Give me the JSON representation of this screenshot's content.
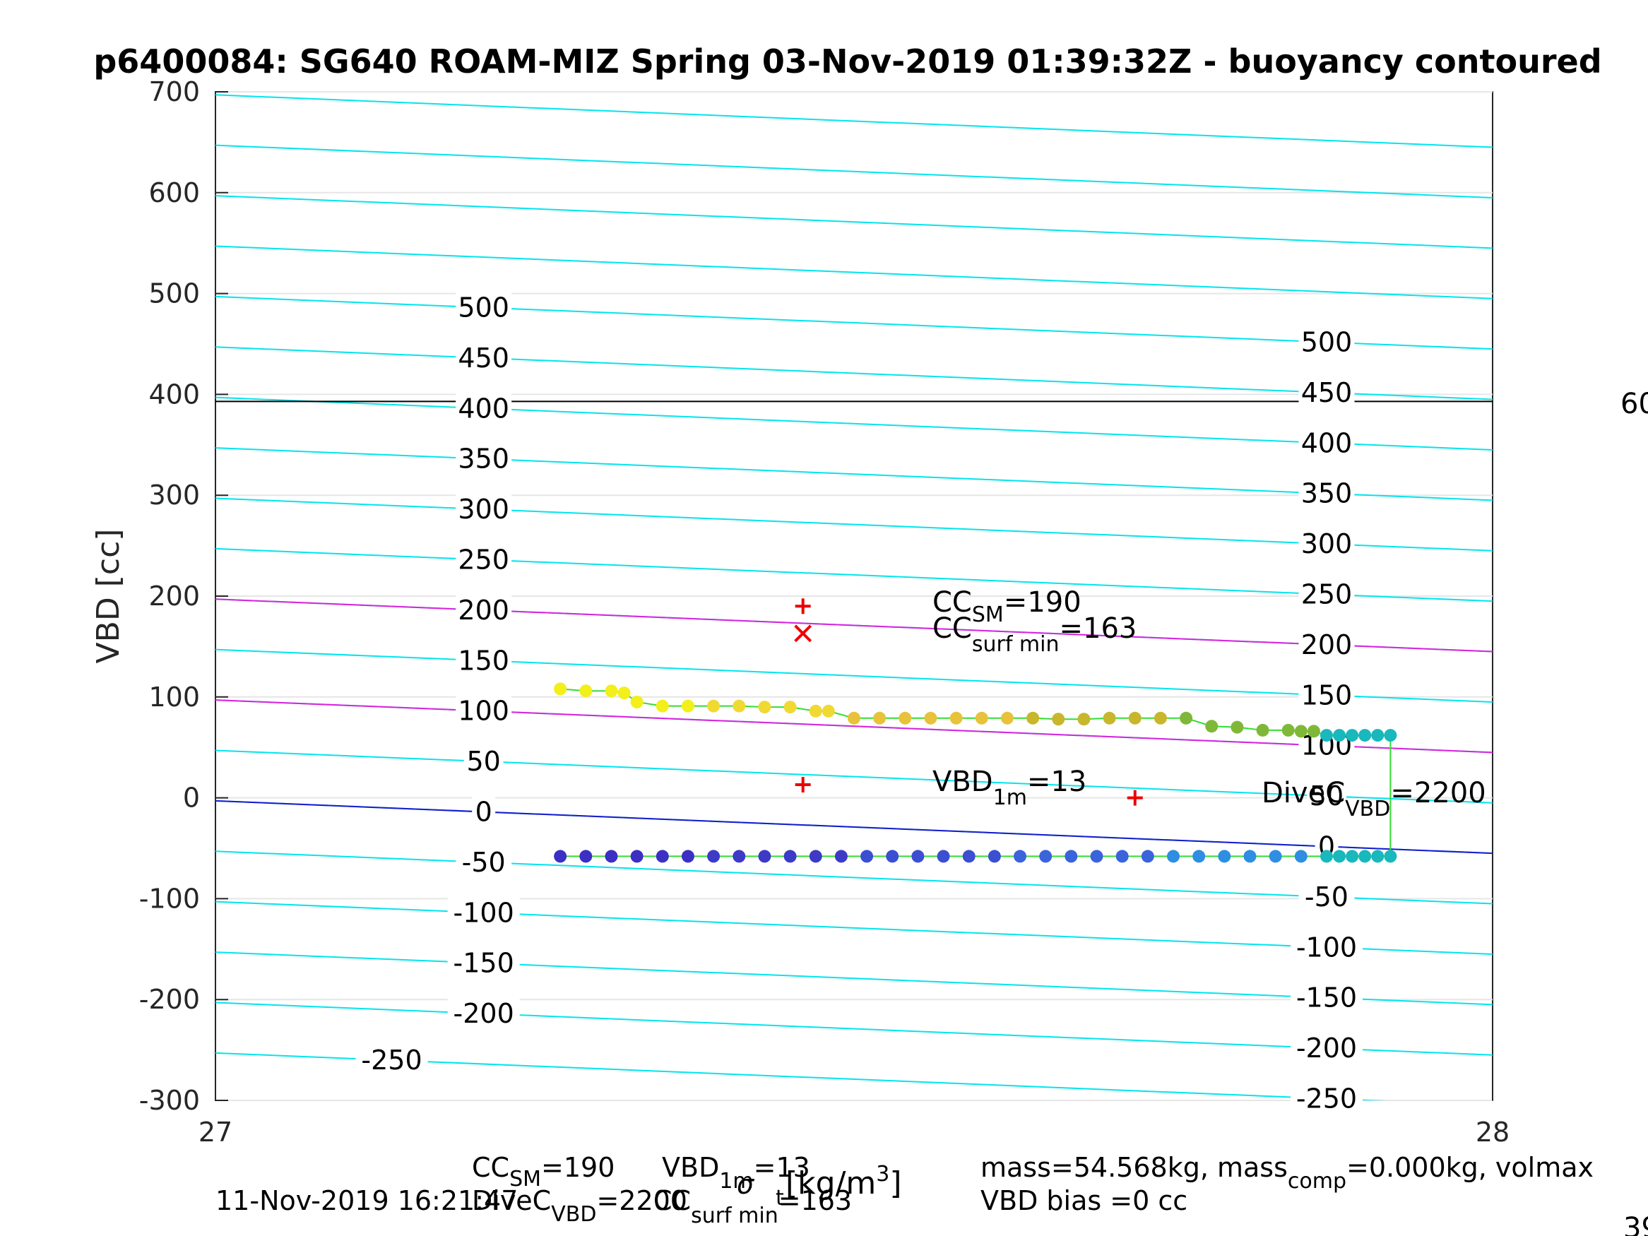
{
  "chart_data": {
    "type": "scatter",
    "title": "p6400084: SG640 ROAM-MIZ Spring 03-Nov-2019 01:39:32Z - buoyancy contoured",
    "xlabel": "σ",
    "xlabel_sub": "t",
    "xlabel_unit": "[kg/m",
    "xlabel_unit_sup": "3",
    "xlabel_unit_end": "]",
    "ylabel": "VBD [cc]",
    "xlim": [
      27,
      28
    ],
    "ylim": [
      -300,
      700
    ],
    "x_ticks": [
      "27",
      "28"
    ],
    "y_ticks": [
      "700",
      "600",
      "500",
      "400",
      "300",
      "200",
      "100",
      "0",
      "-100",
      "-200",
      "-300"
    ],
    "grid": true,
    "contours": {
      "levels": [
        -300,
        -250,
        -200,
        -150,
        -100,
        -50,
        0,
        50,
        100,
        150,
        200,
        250,
        300,
        350,
        400,
        450,
        500,
        550,
        600,
        650,
        700
      ],
      "vbd_at_level_0_x27": -3,
      "vbd_at_level_0_x28": -55,
      "label_x_left": 27.21,
      "label_x_right": 27.87,
      "color": "#00e5ee",
      "left_labels": [
        "500",
        "450",
        "400",
        "350",
        "300",
        "250",
        "200",
        "150",
        "100",
        "50",
        "0",
        "-50",
        "-100",
        "-150",
        "-200"
      ],
      "left_labels_far": [
        "-250"
      ],
      "right_labels": [
        "500",
        "450",
        "400",
        "350",
        "300",
        "250",
        "200",
        "150",
        "100",
        "50",
        "0",
        "-50",
        "-100",
        "-150",
        "-200",
        "-250"
      ]
    },
    "reference_lines": [
      {
        "role": "horizontal",
        "color": "#000000",
        "y": 393
      },
      {
        "role": "contour",
        "color": "#dd22dd",
        "level": 200
      },
      {
        "role": "contour",
        "color": "#dd22dd",
        "level": 100
      },
      {
        "role": "contour",
        "color": "#1a1acc",
        "level": 0
      }
    ],
    "series": [
      {
        "role": "climb",
        "colors": [
          "#f2ef1a",
          "#f0d933",
          "#e8c23a",
          "#c8b62c",
          "#7fb838",
          "#18b8bc"
        ],
        "x": [
          27.27,
          27.29,
          27.31,
          27.32,
          27.33,
          27.35,
          27.37,
          27.39,
          27.41,
          27.43,
          27.45,
          27.47,
          27.48,
          27.5,
          27.52,
          27.54,
          27.56,
          27.58,
          27.6,
          27.62,
          27.64,
          27.66,
          27.68,
          27.7,
          27.72,
          27.74,
          27.76,
          27.78,
          27.8,
          27.82,
          27.84,
          27.85,
          27.86,
          27.87,
          27.88,
          27.89,
          27.9,
          27.91,
          27.92
        ],
        "y": [
          108,
          106,
          106,
          104,
          95,
          91,
          91,
          91,
          91,
          90,
          90,
          86,
          86,
          79,
          79,
          79,
          79,
          79,
          79,
          79,
          79,
          78,
          78,
          79,
          79,
          79,
          79,
          71,
          70,
          67,
          67,
          66,
          66,
          62,
          62,
          62,
          62,
          62,
          62
        ]
      },
      {
        "role": "dive",
        "colors": [
          "#3c2fc4",
          "#3d3ac8",
          "#3c4ed2",
          "#3a63dc",
          "#2e8ee2",
          "#18b8bc"
        ],
        "x": [
          27.27,
          27.29,
          27.31,
          27.33,
          27.35,
          27.37,
          27.39,
          27.41,
          27.43,
          27.45,
          27.47,
          27.49,
          27.51,
          27.53,
          27.55,
          27.57,
          27.59,
          27.61,
          27.63,
          27.65,
          27.67,
          27.69,
          27.71,
          27.73,
          27.75,
          27.77,
          27.79,
          27.81,
          27.83,
          27.85,
          27.87,
          27.88,
          27.89,
          27.9,
          27.91,
          27.92
        ],
        "y": [
          -58,
          -58,
          -58,
          -58,
          -58,
          -58,
          -58,
          -58,
          -58,
          -58,
          -58,
          -58,
          -58,
          -58,
          -58,
          -58,
          -58,
          -58,
          -58,
          -58,
          -58,
          -58,
          -58,
          -58,
          -58,
          -58,
          -58,
          -58,
          -58,
          -58,
          -58,
          -58,
          -58,
          -58,
          -58,
          -58
        ]
      }
    ],
    "connector": {
      "color": "#33dd33",
      "x": 27.92,
      "y_top": 62,
      "y_bottom": -58
    },
    "markers": [
      {
        "shape": "plus",
        "x": 27.46,
        "y": 190,
        "color": "#ee0000"
      },
      {
        "shape": "x",
        "x": 27.46,
        "y": 163,
        "color": "#ee0000"
      },
      {
        "shape": "plus",
        "x": 27.46,
        "y": 13,
        "color": "#ee0000"
      },
      {
        "shape": "plus",
        "x": 27.72,
        "y": 0,
        "color": "#ee0000"
      }
    ],
    "annotations": {
      "cc_sm": {
        "main": "CC",
        "sub": "SM",
        "value": "=190"
      },
      "cc_surf_min": {
        "main": "CC",
        "sub": "surf min",
        "value": "=163"
      },
      "vbd_1m": {
        "main": "VBD",
        "sub": "1m",
        "value": "=13"
      },
      "dive_c_vbd": {
        "main": "DiveC",
        "sub": "VBD",
        "value": "=2200"
      },
      "edge_top": "60",
      "edge_bottom": "39"
    },
    "footer": {
      "timestamp": "11-Nov-2019 16:21:47",
      "cc_sm": "=190",
      "vbd_1m": "=13",
      "dive_c_vbd": "=2200",
      "cc_surf_min": "=163",
      "mass_text": "mass=54.568kg, mass",
      "mass_sub": "comp",
      "mass_tail": "=0.000kg, volmax",
      "vbd_bias": "VBD bias =0 cc"
    }
  }
}
